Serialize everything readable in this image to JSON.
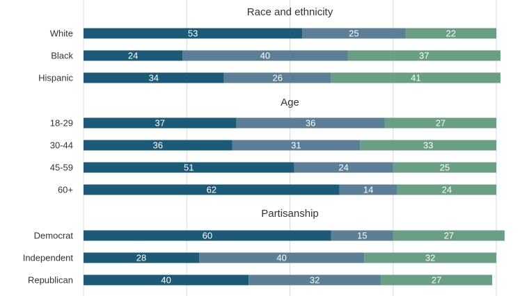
{
  "chart_data": {
    "type": "bar",
    "orientation": "horizontal",
    "stacked": true,
    "grid": true,
    "xlim": [
      0,
      100
    ],
    "colors": [
      "#1d5a78",
      "#5c7f95",
      "#6a9f85"
    ],
    "groups": [
      {
        "title": "Race and ethnicity",
        "rows": [
          {
            "label": "White",
            "values": [
              53,
              25,
              22
            ]
          },
          {
            "label": "Black",
            "values": [
              24,
              40,
              37
            ]
          },
          {
            "label": "Hispanic",
            "values": [
              34,
              26,
              41
            ]
          }
        ]
      },
      {
        "title": "Age",
        "rows": [
          {
            "label": "18-29",
            "values": [
              37,
              36,
              27
            ]
          },
          {
            "label": "30-44",
            "values": [
              36,
              31,
              33
            ]
          },
          {
            "label": "45-59",
            "values": [
              51,
              24,
              25
            ]
          },
          {
            "label": "60+",
            "values": [
              62,
              14,
              24
            ]
          }
        ]
      },
      {
        "title": "Partisanship",
        "rows": [
          {
            "label": "Democrat",
            "values": [
              60,
              15,
              27
            ]
          },
          {
            "label": "Independent",
            "values": [
              28,
              40,
              32
            ]
          },
          {
            "label": "Republican",
            "values": [
              40,
              32,
              27
            ]
          }
        ]
      }
    ]
  }
}
